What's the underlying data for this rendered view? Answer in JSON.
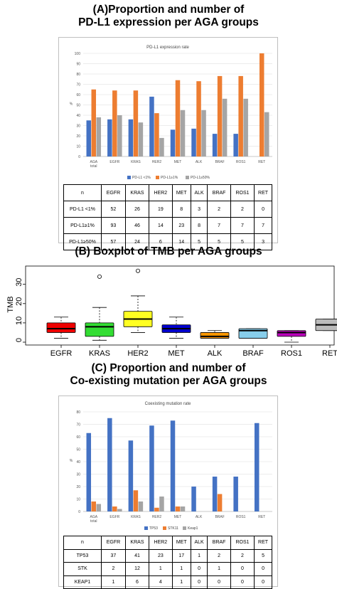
{
  "headings": {
    "a_line1": "(A)Proportion and number of",
    "a_line2": "PD-L1 expression per AGA groups",
    "b": "(B) Boxplot of TMB per AGA groups",
    "c_line1": "(C) Proportion and number of",
    "c_line2": "Co-existing mutation per AGA groups"
  },
  "chart_data": [
    {
      "type": "bar",
      "title": "PD-L1 expression rate",
      "ylabel": "%",
      "ylim": [
        0,
        100
      ],
      "yticks": [
        "0",
        "10",
        "20",
        "30",
        "40",
        "50",
        "60",
        "70",
        "80",
        "90",
        "100"
      ],
      "categories": [
        "AGA\ntotal",
        "EGFR",
        "KRAS",
        "HER2",
        "MET",
        "ALK",
        "BRAF",
        "ROS1",
        "RET"
      ],
      "legend_position": "bottom",
      "series": [
        {
          "name": "PD-L1 <1%",
          "color": "#4472c4",
          "values": [
            35,
            36,
            36,
            58,
            26,
            27,
            22,
            22,
            0
          ]
        },
        {
          "name": "PD-L1≥1%",
          "color": "#ed7d31",
          "values": [
            65,
            64,
            64,
            42,
            74,
            73,
            78,
            78,
            100
          ]
        },
        {
          "name": "PD-L1≥50%",
          "color": "#a5a5a5",
          "values": [
            38,
            40,
            33,
            18,
            45,
            45,
            56,
            56,
            43
          ]
        }
      ],
      "table": {
        "header": [
          "n",
          "EGFR",
          "KRAS",
          "HER2",
          "MET",
          "ALK",
          "BRAF",
          "ROS1",
          "RET"
        ],
        "rows": [
          [
            "PD-L1 <1%",
            "52",
            "26",
            "19",
            "8",
            "3",
            "2",
            "2",
            "0"
          ],
          [
            "PD-L1≥1%",
            "93",
            "46",
            "14",
            "23",
            "8",
            "7",
            "7",
            "7"
          ],
          [
            "PD-L1≥50%",
            "57",
            "24",
            "6",
            "14",
            "5",
            "5",
            "5",
            "3"
          ]
        ]
      }
    },
    {
      "type": "boxplot",
      "ylabel": "TMB",
      "ylim": [
        0,
        38
      ],
      "yticks": [
        "0",
        "10",
        "20",
        "30"
      ],
      "categories": [
        "EGFR",
        "KRAS",
        "HER2",
        "MET",
        "ALK",
        "BRAF",
        "ROS1",
        "RET"
      ],
      "boxes": [
        {
          "name": "EGFR",
          "color": "#ee0000",
          "whislo": 2,
          "q1": 5,
          "med": 7,
          "q3": 10,
          "whishi": 13,
          "outliers": []
        },
        {
          "name": "KRAS",
          "color": "#33dd33",
          "whislo": 1,
          "q1": 3,
          "med": 8,
          "q3": 10,
          "whishi": 18,
          "outliers": [
            34
          ]
        },
        {
          "name": "HER2",
          "color": "#ffff22",
          "whislo": 5,
          "q1": 8,
          "med": 12,
          "q3": 16,
          "whishi": 24,
          "outliers": [
            37
          ]
        },
        {
          "name": "MET",
          "color": "#0000cc",
          "whislo": 2,
          "q1": 5,
          "med": 7,
          "q3": 9,
          "whishi": 13,
          "outliers": []
        },
        {
          "name": "ALK",
          "color": "#ff9900",
          "whislo": 2,
          "q1": 2,
          "med": 3,
          "q3": 5,
          "whishi": 6,
          "outliers": []
        },
        {
          "name": "BRAF",
          "color": "#87ceeb",
          "whislo": 2,
          "q1": 2,
          "med": 6,
          "q3": 7,
          "whishi": 7,
          "outliers": []
        },
        {
          "name": "ROS1",
          "color": "#bb00bb",
          "whislo": 0,
          "q1": 3,
          "med": 5,
          "q3": 6,
          "whishi": 6,
          "outliers": []
        },
        {
          "name": "RET",
          "color": "#bbbbbb",
          "whislo": 6,
          "q1": 6,
          "med": 9,
          "q3": 12,
          "whishi": 12,
          "outliers": []
        }
      ]
    },
    {
      "type": "bar",
      "title": "Coexisting mutation rate",
      "ylabel": "%",
      "ylim": [
        0,
        80
      ],
      "yticks": [
        "0",
        "10",
        "20",
        "30",
        "40",
        "50",
        "60",
        "70",
        "80"
      ],
      "categories": [
        "AGA\ntotal",
        "EGFR",
        "KRAS",
        "HER2",
        "MET",
        "ALK",
        "BRAF",
        "ROS1",
        "RET"
      ],
      "legend_position": "bottom",
      "series": [
        {
          "name": "TP53",
          "color": "#4472c4",
          "values": [
            63,
            75,
            57,
            69,
            73,
            20,
            28,
            28,
            71
          ]
        },
        {
          "name": "STK11",
          "color": "#ed7d31",
          "values": [
            8,
            4,
            17,
            3,
            4,
            0,
            14,
            0,
            0
          ]
        },
        {
          "name": "Keap1",
          "color": "#a5a5a5",
          "values": [
            6,
            2,
            8,
            12,
            4,
            0,
            0,
            0,
            0
          ]
        }
      ],
      "table": {
        "header": [
          "n",
          "EGFR",
          "KRAS",
          "HER2",
          "MET",
          "ALK",
          "BRAF",
          "ROS1",
          "RET"
        ],
        "rows": [
          [
            "TP53",
            "37",
            "41",
            "23",
            "17",
            "1",
            "2",
            "2",
            "5"
          ],
          [
            "STK",
            "2",
            "12",
            "1",
            "1",
            "0",
            "1",
            "0",
            "0"
          ],
          [
            "KEAP1",
            "1",
            "6",
            "4",
            "1",
            "0",
            "0",
            "0",
            "0"
          ]
        ]
      }
    }
  ]
}
